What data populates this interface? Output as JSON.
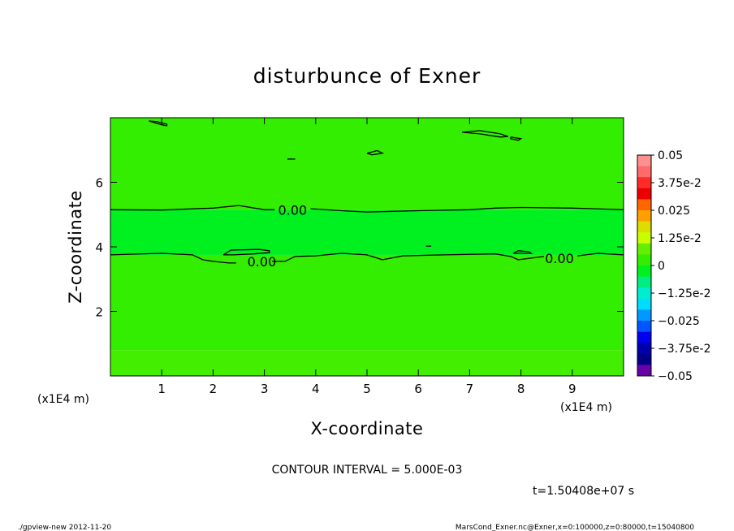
{
  "chart_data": {
    "type": "heatmap",
    "title": "disturbunce of Exner",
    "xlabel": "X-coordinate",
    "ylabel": "Z-coordinate",
    "x_unit": "(x1E4 m)",
    "x_unit_left": "(x1E4 m)",
    "xlim": [
      0,
      10
    ],
    "ylim": [
      0,
      8
    ],
    "x_ticks": [
      1,
      2,
      3,
      4,
      5,
      6,
      7,
      8,
      9
    ],
    "y_ticks": [
      2,
      4,
      6
    ],
    "fill_bands": [
      {
        "z_from": 0.0,
        "z_to": 0.8,
        "color": "#44ee00"
      },
      {
        "z_from": 0.8,
        "z_to": 3.75,
        "color": "#33ee00"
      },
      {
        "z_from": 3.75,
        "z_to": 5.15,
        "color": "#00f020"
      },
      {
        "z_from": 5.15,
        "z_to": 8.0,
        "color": "#33ee00"
      }
    ],
    "contour_labels": [
      {
        "text": "0.00",
        "x": 3.55,
        "z": 5.15
      },
      {
        "text": "0.00",
        "x": 2.95,
        "z": 3.55
      },
      {
        "text": "0.00",
        "x": 8.75,
        "z": 3.65
      }
    ],
    "contour_lines": [
      {
        "points": [
          [
            0.0,
            5.15
          ],
          [
            1.0,
            5.14
          ],
          [
            2.0,
            5.2
          ],
          [
            2.5,
            5.28
          ],
          [
            3.0,
            5.15
          ],
          [
            3.2,
            5.15
          ]
        ]
      },
      {
        "points": [
          [
            3.9,
            5.18
          ],
          [
            4.5,
            5.12
          ],
          [
            5.0,
            5.08
          ],
          [
            5.5,
            5.1
          ],
          [
            6.0,
            5.12
          ],
          [
            7.0,
            5.15
          ],
          [
            7.5,
            5.2
          ],
          [
            8.0,
            5.22
          ],
          [
            9.0,
            5.2
          ],
          [
            10.0,
            5.15
          ]
        ]
      },
      {
        "points": [
          [
            0.0,
            3.75
          ],
          [
            1.0,
            3.8
          ],
          [
            1.6,
            3.75
          ],
          [
            1.8,
            3.6
          ],
          [
            2.0,
            3.55
          ],
          [
            2.3,
            3.5
          ],
          [
            2.45,
            3.5
          ]
        ]
      },
      {
        "points": [
          [
            3.15,
            3.55
          ],
          [
            3.4,
            3.55
          ],
          [
            3.6,
            3.7
          ],
          [
            4.0,
            3.72
          ],
          [
            4.5,
            3.8
          ],
          [
            5.0,
            3.75
          ],
          [
            5.3,
            3.6
          ],
          [
            5.7,
            3.72
          ],
          [
            6.5,
            3.75
          ],
          [
            7.5,
            3.78
          ],
          [
            7.8,
            3.7
          ],
          [
            7.95,
            3.6
          ],
          [
            8.2,
            3.65
          ],
          [
            8.45,
            3.7
          ]
        ]
      },
      {
        "points": [
          [
            9.1,
            3.72
          ],
          [
            9.5,
            3.8
          ],
          [
            10.0,
            3.75
          ]
        ]
      },
      {
        "points": [
          [
            2.2,
            3.75
          ],
          [
            2.35,
            3.9
          ],
          [
            2.9,
            3.92
          ],
          [
            3.1,
            3.88
          ],
          [
            3.1,
            3.82
          ],
          [
            2.8,
            3.78
          ],
          [
            2.4,
            3.75
          ],
          [
            2.2,
            3.75
          ]
        ]
      },
      {
        "points": [
          [
            7.85,
            3.8
          ],
          [
            7.95,
            3.88
          ],
          [
            8.15,
            3.85
          ],
          [
            8.2,
            3.8
          ],
          [
            7.85,
            3.8
          ]
        ]
      },
      {
        "points": [
          [
            0.75,
            7.9
          ],
          [
            1.0,
            7.78
          ],
          [
            1.1,
            7.75
          ],
          [
            1.1,
            7.8
          ],
          [
            0.9,
            7.88
          ],
          [
            0.75,
            7.9
          ]
        ]
      },
      {
        "points": [
          [
            6.85,
            7.55
          ],
          [
            7.2,
            7.6
          ],
          [
            7.6,
            7.5
          ],
          [
            7.75,
            7.42
          ],
          [
            7.6,
            7.4
          ],
          [
            7.2,
            7.5
          ],
          [
            6.85,
            7.55
          ]
        ]
      },
      {
        "points": [
          [
            7.8,
            7.4
          ],
          [
            8.0,
            7.35
          ],
          [
            7.95,
            7.3
          ],
          [
            7.8,
            7.35
          ],
          [
            7.8,
            7.4
          ]
        ]
      },
      {
        "points": [
          [
            5.0,
            6.9
          ],
          [
            5.2,
            6.98
          ],
          [
            5.3,
            6.9
          ],
          [
            5.1,
            6.85
          ],
          [
            5.0,
            6.9
          ]
        ]
      },
      {
        "points": [
          [
            3.45,
            6.72
          ],
          [
            3.6,
            6.72
          ]
        ]
      },
      {
        "points": [
          [
            6.15,
            4.02
          ],
          [
            6.25,
            4.02
          ]
        ]
      }
    ]
  },
  "colorbar": {
    "labels": [
      "0.05",
      "3.75e-2",
      "0.025",
      "1.25e-2",
      "0",
      "−1.25e-2",
      "−0.025",
      "−3.75e-2",
      "−0.05"
    ],
    "colors": [
      "#ff9090",
      "#ff6a6a",
      "#ff2a2a",
      "#ee0000",
      "#ff6600",
      "#ffa000",
      "#dddd00",
      "#c8ff00",
      "#66ee00",
      "#33ee00",
      "#00f020",
      "#00ee80",
      "#00eed0",
      "#00ddff",
      "#0099ff",
      "#0055ff",
      "#0000ee",
      "#0000aa",
      "#000088",
      "#6a00a8"
    ]
  },
  "contour_interval": "CONTOUR INTERVAL = 5.000E-03",
  "time_label": "t=1.50408e+07 s",
  "footer_left": "./gpview-new   2012-11-20",
  "footer_right": "MarsCond_Exner.nc@Exner,x=0:100000,z=0:80000,t=15040800"
}
